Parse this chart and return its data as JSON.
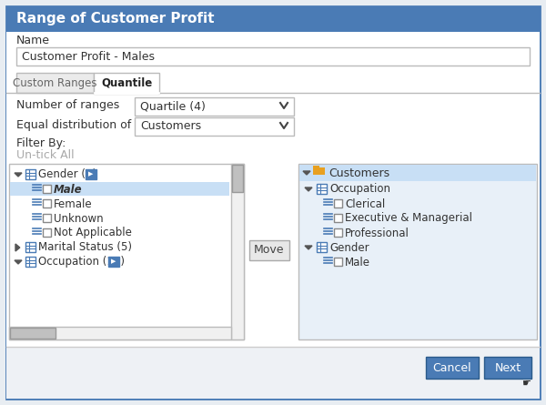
{
  "title": "Range of Customer Profit",
  "title_bg": "#4a7bb5",
  "title_fg": "#ffffff",
  "dialog_bg": "#ffffff",
  "outer_bg": "#e8edf2",
  "border_color": "#4a7bb5",
  "name_label": "Name",
  "name_value": "Customer Profit - Males",
  "tab_custom": "Custom Ranges",
  "tab_quantile": "Quantile",
  "num_ranges_label": "Number of ranges",
  "num_ranges_value": "Quartile (4)",
  "eq_dist_label": "Equal distribution of",
  "eq_dist_value": "Customers",
  "filter_label": "Filter By:",
  "untick_label": "Un-tick All",
  "untick_color": "#aaaaaa",
  "move_btn_label": "Move",
  "cancel_btn_label": "Cancel",
  "next_btn_label": "Next",
  "btn_bg": "#4a7bb5",
  "btn_fg": "#ffffff"
}
